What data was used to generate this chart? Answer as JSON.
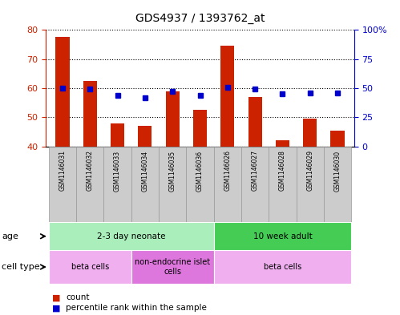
{
  "title": "GDS4937 / 1393762_at",
  "samples": [
    "GSM1146031",
    "GSM1146032",
    "GSM1146033",
    "GSM1146034",
    "GSM1146035",
    "GSM1146036",
    "GSM1146026",
    "GSM1146027",
    "GSM1146028",
    "GSM1146029",
    "GSM1146030"
  ],
  "counts": [
    77.5,
    62.5,
    48.0,
    47.0,
    59.0,
    52.5,
    74.5,
    57.0,
    42.0,
    49.5,
    45.5
  ],
  "percentiles": [
    50,
    49,
    44,
    42,
    47,
    44,
    51,
    49,
    45,
    46,
    46
  ],
  "ylim_left": [
    40,
    80
  ],
  "ylim_right": [
    0,
    100
  ],
  "yticks_left": [
    40,
    50,
    60,
    70,
    80
  ],
  "yticks_right": [
    0,
    25,
    50,
    75,
    100
  ],
  "ytick_labels_right": [
    "0",
    "25",
    "50",
    "75",
    "100%"
  ],
  "bar_color": "#cc2200",
  "dot_color": "#0000cc",
  "bar_width": 0.5,
  "age_groups": [
    {
      "label": "2-3 day neonate",
      "start": 0,
      "end": 6,
      "color": "#aaeebb"
    },
    {
      "label": "10 week adult",
      "start": 6,
      "end": 11,
      "color": "#44cc55"
    }
  ],
  "cell_type_groups": [
    {
      "label": "beta cells",
      "start": 0,
      "end": 3,
      "color": "#f0b0f0"
    },
    {
      "label": "non-endocrine islet\ncells",
      "start": 3,
      "end": 6,
      "color": "#dd77dd"
    },
    {
      "label": "beta cells",
      "start": 6,
      "end": 11,
      "color": "#f0b0f0"
    }
  ],
  "legend_count_label": "count",
  "legend_percentile_label": "percentile rank within the sample",
  "axis_color_left": "#cc2200",
  "axis_color_right": "#0000cc",
  "grid_color": "black",
  "xtick_bg": "#cccccc",
  "xtick_edge": "#999999"
}
